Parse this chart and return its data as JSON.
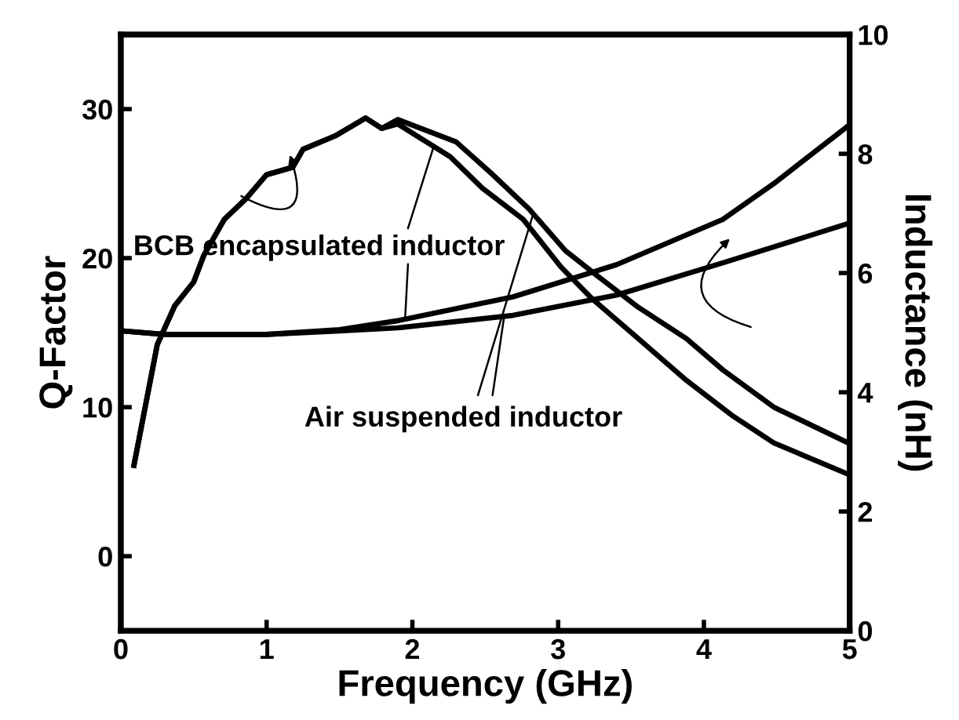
{
  "chart_data": {
    "type": "line",
    "xlabel": "Frequency (GHz)",
    "ylabel": "Q-Factor",
    "y2label": "Inductance (nH)",
    "xlim": [
      0,
      5
    ],
    "xticks": [
      0,
      1,
      2,
      3,
      4,
      5
    ],
    "ylim": [
      -5,
      35
    ],
    "yticks": [
      0,
      10,
      20,
      30
    ],
    "y2lim": [
      0,
      10
    ],
    "y2ticks": [
      0,
      2,
      4,
      6,
      8,
      10
    ],
    "grid": false,
    "legend": false,
    "marker": "none",
    "line_style": "solid",
    "series": [
      {
        "color": "#000000",
        "x": [
          0.09,
          0.25,
          0.37,
          0.5,
          0.57,
          0.71,
          0.86,
          1.0,
          1.18,
          1.25,
          1.47,
          1.68,
          1.79,
          1.9,
          2.26,
          2.48,
          2.76,
          3.02,
          3.23,
          3.55,
          3.88,
          4.2,
          4.48,
          4.99
        ],
        "values": [
          6.1,
          14.2,
          16.8,
          18.4,
          20.2,
          22.6,
          24.0,
          25.6,
          26.1,
          27.3,
          28.2,
          29.4,
          28.7,
          29.0,
          26.8,
          24.7,
          22.6,
          19.4,
          17.3,
          14.6,
          11.8,
          9.4,
          7.6,
          5.5
        ]
      },
      {
        "color": "#000000",
        "x": [
          0.09,
          0.25,
          0.37,
          0.5,
          0.57,
          0.71,
          0.86,
          1.0,
          1.18,
          1.25,
          1.47,
          1.68,
          1.79,
          1.9,
          2.3,
          2.54,
          2.8,
          3.05,
          3.27,
          3.55,
          3.88,
          4.13,
          4.48,
          4.99
        ],
        "values": [
          6.1,
          14.2,
          16.8,
          18.4,
          20.2,
          22.6,
          24.0,
          25.6,
          26.1,
          27.3,
          28.2,
          29.4,
          28.7,
          29.3,
          27.8,
          25.7,
          23.3,
          20.5,
          18.8,
          16.7,
          14.6,
          12.5,
          10.0,
          7.6
        ]
      },
      {
        "color": "#000000",
        "axis": "y2",
        "x": [
          0.0,
          0.3,
          1.0,
          1.5,
          1.9,
          2.69,
          3.4,
          4.13,
          4.48,
          4.99
        ],
        "values": [
          5.03,
          4.97,
          4.97,
          5.05,
          5.2,
          5.6,
          6.14,
          6.9,
          7.5,
          8.47
        ]
      },
      {
        "color": "#000000",
        "axis": "y2",
        "x": [
          0.0,
          0.3,
          1.0,
          1.5,
          1.9,
          2.69,
          3.4,
          4.13,
          4.99
        ],
        "values": [
          5.03,
          4.97,
          4.97,
          5.03,
          5.08,
          5.29,
          5.63,
          6.17,
          6.83
        ]
      }
    ],
    "annotations": [
      {
        "text": "BCB encapsulated inductor",
        "x": 2.15,
        "y": 27.6
      },
      {
        "text": "Air suspended inductor",
        "x": 2.83,
        "y": 23.0
      }
    ]
  }
}
